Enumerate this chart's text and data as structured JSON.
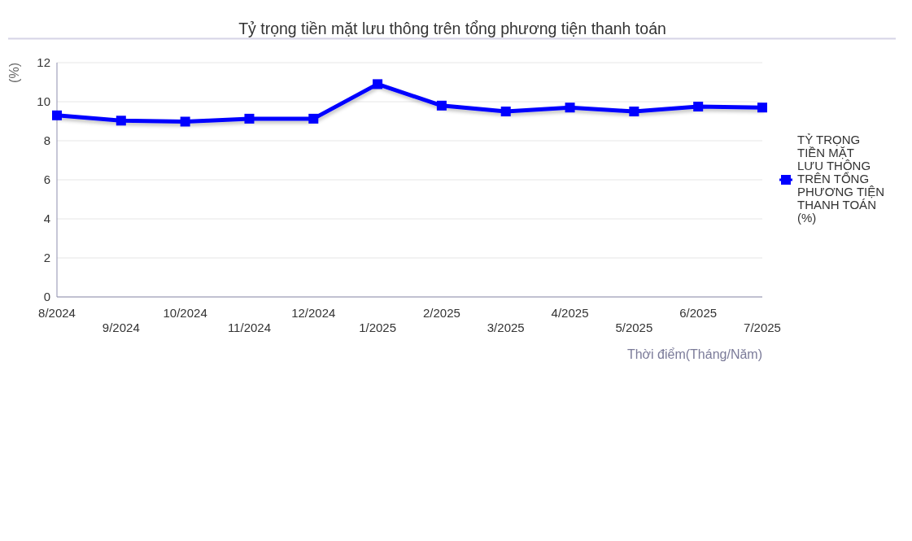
{
  "chart_data": {
    "type": "line",
    "title": "Tỷ trọng tiền mặt lưu thông trên tổng phương tiện thanh toán",
    "xlabel": "Thời điểm(Tháng/Năm)",
    "ylabel": "(%)",
    "categories": [
      "8/2024",
      "9/2024",
      "10/2024",
      "11/2024",
      "12/2024",
      "1/2025",
      "2/2025",
      "3/2025",
      "4/2025",
      "5/2025",
      "6/2025",
      "7/2025"
    ],
    "series": [
      {
        "name": "TỶ TRỌNG TIỀN MẶT LƯU THÔNG TRÊN TỔNG PHƯƠNG TIỆN THANH TOÁN (%)",
        "color": "#0000ff",
        "values": [
          9.3,
          9.03,
          8.98,
          9.13,
          9.13,
          10.9,
          9.8,
          9.5,
          9.7,
          9.5,
          9.75,
          9.7
        ]
      }
    ],
    "ylim": [
      0,
      12
    ],
    "yticks": [
      0,
      2,
      4,
      6,
      8,
      10,
      12
    ],
    "grid": "y",
    "legend": "right",
    "marker": "square",
    "line_style": "solid"
  }
}
